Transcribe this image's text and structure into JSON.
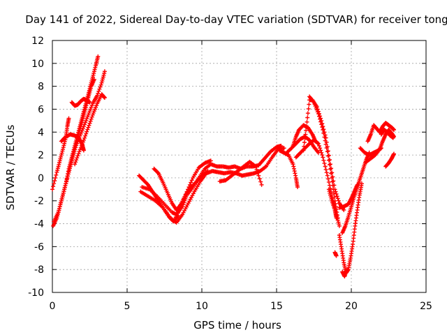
{
  "chart_data": {
    "type": "scatter",
    "title": "Day 141 of 2022, Sidereal Day-to-day VTEC variation (SDTVAR) for receiver tong",
    "xlabel": "GPS time / hours",
    "ylabel": "SDTVAR / TECUs",
    "xlim": [
      0,
      25
    ],
    "ylim": [
      -10,
      12
    ],
    "x_ticks": [
      0,
      5,
      10,
      15,
      20,
      25
    ],
    "y_ticks": [
      -10,
      -8,
      -6,
      -4,
      -2,
      0,
      2,
      4,
      6,
      8,
      10,
      12
    ],
    "grid": true,
    "legend": "none",
    "marker": "plus",
    "series": [
      {
        "color": "#ff0000",
        "tracks": [
          [
            [
              0.0,
              -1.0
            ],
            [
              0.3,
              0.5
            ],
            [
              0.5,
              1.5
            ],
            [
              0.7,
              2.5
            ],
            [
              0.9,
              3.5
            ],
            [
              1.0,
              4.5
            ],
            [
              1.1,
              5.2
            ]
          ],
          [
            [
              0.05,
              -4.2
            ],
            [
              0.3,
              -3.5
            ],
            [
              0.5,
              -2.5
            ],
            [
              0.7,
              -1.5
            ],
            [
              0.9,
              -0.5
            ],
            [
              1.1,
              0.8
            ],
            [
              1.3,
              1.8
            ],
            [
              1.5,
              2.8
            ],
            [
              1.7,
              3.8
            ],
            [
              1.9,
              4.8
            ],
            [
              2.1,
              5.8
            ],
            [
              2.3,
              6.8
            ],
            [
              2.5,
              7.8
            ],
            [
              2.7,
              8.8
            ],
            [
              2.9,
              9.8
            ],
            [
              3.05,
              10.6
            ]
          ],
          [
            [
              0.1,
              -3.8
            ],
            [
              0.4,
              -3.0
            ],
            [
              0.6,
              -2.0
            ],
            [
              0.8,
              -1.0
            ],
            [
              1.0,
              0.0
            ],
            [
              1.2,
              1.0
            ],
            [
              1.4,
              2.0
            ],
            [
              1.6,
              3.0
            ],
            [
              1.8,
              4.0
            ],
            [
              2.0,
              5.0
            ],
            [
              2.2,
              6.0
            ],
            [
              2.4,
              7.0
            ],
            [
              2.6,
              8.0
            ],
            [
              2.8,
              8.6
            ]
          ],
          [
            [
              0.6,
              3.2
            ],
            [
              0.9,
              3.6
            ],
            [
              1.2,
              3.8
            ],
            [
              1.5,
              3.7
            ],
            [
              1.8,
              3.4
            ],
            [
              2.0,
              2.9
            ],
            [
              2.1,
              2.4
            ]
          ],
          [
            [
              1.3,
              1.5
            ],
            [
              1.5,
              2.5
            ],
            [
              1.8,
              3.5
            ],
            [
              2.1,
              4.5
            ],
            [
              2.4,
              5.5
            ],
            [
              2.7,
              6.5
            ],
            [
              3.0,
              7.2
            ],
            [
              3.3,
              8.3
            ],
            [
              3.5,
              9.3
            ]
          ],
          [
            [
              1.5,
              1.2
            ],
            [
              1.8,
              2.3
            ],
            [
              2.1,
              3.3
            ],
            [
              2.4,
              4.4
            ],
            [
              2.7,
              5.5
            ],
            [
              3.0,
              6.5
            ],
            [
              3.3,
              7.3
            ],
            [
              3.5,
              7.0
            ]
          ],
          [
            [
              1.3,
              6.6
            ],
            [
              1.5,
              6.3
            ],
            [
              1.7,
              6.4
            ],
            [
              1.9,
              6.7
            ],
            [
              2.1,
              6.9
            ],
            [
              2.3,
              6.8
            ],
            [
              2.5,
              6.6
            ]
          ],
          [
            [
              5.9,
              -1.2
            ],
            [
              6.4,
              -1.6
            ],
            [
              6.9,
              -2.0
            ],
            [
              7.4,
              -2.6
            ],
            [
              7.9,
              -3.5
            ],
            [
              8.3,
              -3.9
            ],
            [
              8.7,
              -3.2
            ],
            [
              9.1,
              -2.2
            ],
            [
              9.5,
              -1.2
            ],
            [
              9.9,
              -0.3
            ],
            [
              10.3,
              0.4
            ],
            [
              10.7,
              0.6
            ],
            [
              11.1,
              0.5
            ],
            [
              11.5,
              0.4
            ],
            [
              11.9,
              0.5
            ],
            [
              12.3,
              0.4
            ],
            [
              12.7,
              0.2
            ],
            [
              13.1,
              0.3
            ],
            [
              13.5,
              0.4
            ],
            [
              13.9,
              0.6
            ],
            [
              14.3,
              1.0
            ],
            [
              14.7,
              1.8
            ],
            [
              15.1,
              2.5
            ],
            [
              15.5,
              2.6
            ]
          ],
          [
            [
              6.0,
              -0.8
            ],
            [
              6.5,
              -1.0
            ],
            [
              7.0,
              -1.6
            ],
            [
              7.5,
              -2.3
            ],
            [
              8.0,
              -3.0
            ],
            [
              8.3,
              -3.2
            ],
            [
              8.7,
              -2.5
            ],
            [
              9.0,
              -1.5
            ],
            [
              9.4,
              -0.8
            ],
            [
              9.8,
              0.0
            ],
            [
              10.2,
              0.8
            ],
            [
              10.6,
              1.2
            ],
            [
              11.0,
              1.0
            ],
            [
              11.4,
              1.0
            ],
            [
              11.8,
              0.9
            ],
            [
              12.2,
              1.0
            ],
            [
              12.6,
              0.8
            ],
            [
              13.0,
              1.0
            ],
            [
              13.4,
              1.0
            ],
            [
              13.8,
              1.1
            ],
            [
              14.2,
              1.7
            ],
            [
              14.6,
              2.3
            ],
            [
              15.0,
              2.7
            ],
            [
              15.3,
              2.8
            ]
          ],
          [
            [
              6.8,
              0.8
            ],
            [
              7.1,
              0.4
            ],
            [
              7.4,
              -0.4
            ],
            [
              7.7,
              -1.3
            ],
            [
              8.0,
              -2.2
            ],
            [
              8.3,
              -2.8
            ],
            [
              8.6,
              -2.3
            ],
            [
              8.9,
              -1.5
            ],
            [
              9.2,
              -0.9
            ],
            [
              9.6,
              -0.4
            ],
            [
              10.0,
              0.2
            ],
            [
              10.4,
              0.6
            ]
          ],
          [
            [
              5.8,
              0.2
            ],
            [
              6.1,
              -0.2
            ],
            [
              6.4,
              -0.6
            ],
            [
              6.7,
              -1.2
            ],
            [
              7.0,
              -1.8
            ],
            [
              7.4,
              -2.6
            ],
            [
              7.8,
              -3.4
            ],
            [
              8.1,
              -3.8
            ],
            [
              8.4,
              -3.3
            ]
          ],
          [
            [
              8.2,
              -3.6
            ],
            [
              8.6,
              -2.5
            ],
            [
              9.0,
              -1.2
            ],
            [
              9.4,
              0.0
            ],
            [
              9.8,
              0.9
            ],
            [
              10.2,
              1.3
            ],
            [
              10.6,
              1.5
            ]
          ],
          [
            [
              11.2,
              -0.3
            ],
            [
              11.6,
              -0.2
            ],
            [
              12.0,
              0.2
            ],
            [
              12.4,
              0.6
            ],
            [
              12.8,
              1.0
            ],
            [
              13.2,
              1.4
            ],
            [
              13.6,
              1.0
            ],
            [
              14.0,
              -0.6
            ]
          ],
          [
            [
              15.2,
              2.4
            ],
            [
              15.5,
              2.2
            ],
            [
              15.8,
              2.0
            ],
            [
              16.1,
              1.2
            ],
            [
              16.3,
              0.0
            ],
            [
              16.4,
              -0.8
            ]
          ],
          [
            [
              15.6,
              2.1
            ],
            [
              16.0,
              2.6
            ],
            [
              16.3,
              3.0
            ],
            [
              16.6,
              3.4
            ],
            [
              16.9,
              3.6
            ],
            [
              17.2,
              3.3
            ],
            [
              17.5,
              2.7
            ],
            [
              17.8,
              2.2
            ]
          ],
          [
            [
              16.3,
              1.8
            ],
            [
              16.6,
              2.2
            ],
            [
              16.9,
              2.6
            ],
            [
              17.2,
              3.0
            ],
            [
              17.5,
              3.3
            ],
            [
              17.8,
              3.0
            ],
            [
              18.1,
              1.8
            ],
            [
              18.4,
              0.2
            ],
            [
              18.7,
              -1.5
            ],
            [
              19.0,
              -3.2
            ],
            [
              19.2,
              -4.2
            ]
          ],
          [
            [
              16.1,
              2.8
            ],
            [
              16.3,
              3.6
            ],
            [
              16.5,
              4.2
            ],
            [
              16.8,
              4.6
            ],
            [
              17.1,
              4.4
            ],
            [
              17.4,
              3.8
            ],
            [
              17.6,
              3.2
            ]
          ],
          [
            [
              16.8,
              2.4
            ],
            [
              17.0,
              4.5
            ],
            [
              17.2,
              6.8
            ],
            [
              17.4,
              6.8
            ],
            [
              17.7,
              6.2
            ],
            [
              18.0,
              5.0
            ],
            [
              18.3,
              3.5
            ],
            [
              18.6,
              1.2
            ],
            [
              18.9,
              -1.0
            ],
            [
              19.2,
              -2.2
            ],
            [
              19.5,
              -2.8
            ]
          ],
          [
            [
              17.2,
              7.1
            ],
            [
              17.5,
              6.6
            ],
            [
              17.8,
              5.6
            ],
            [
              18.1,
              4.2
            ],
            [
              18.4,
              2.3
            ],
            [
              18.7,
              0.0
            ],
            [
              18.9,
              -2.0
            ],
            [
              19.1,
              -3.5
            ]
          ],
          [
            [
              18.5,
              -1.0
            ],
            [
              18.7,
              -2.0
            ],
            [
              18.9,
              -2.8
            ],
            [
              19.0,
              -3.5
            ]
          ],
          [
            [
              18.9,
              -6.5
            ],
            [
              19.0,
              -6.8
            ]
          ],
          [
            [
              19.2,
              -5.0
            ],
            [
              19.35,
              -6.2
            ],
            [
              19.5,
              -7.4
            ],
            [
              19.65,
              -8.3
            ],
            [
              19.8,
              -8.0
            ],
            [
              19.95,
              -7.0
            ],
            [
              20.1,
              -5.8
            ],
            [
              20.25,
              -4.2
            ],
            [
              20.4,
              -2.8
            ],
            [
              20.55,
              -1.5
            ],
            [
              20.7,
              -0.5
            ]
          ],
          [
            [
              19.4,
              -8.2
            ],
            [
              19.55,
              -8.6
            ],
            [
              19.7,
              -8.0
            ]
          ],
          [
            [
              19.2,
              -2.6
            ],
            [
              19.5,
              -2.5
            ],
            [
              19.8,
              -2.3
            ],
            [
              20.0,
              -1.8
            ],
            [
              20.2,
              -1.2
            ],
            [
              20.4,
              -0.6
            ]
          ],
          [
            [
              19.4,
              -4.8
            ],
            [
              19.6,
              -4.2
            ],
            [
              19.8,
              -3.4
            ],
            [
              20.0,
              -2.5
            ],
            [
              20.2,
              -1.6
            ],
            [
              20.4,
              -0.8
            ],
            [
              20.6,
              0.0
            ],
            [
              20.8,
              0.8
            ],
            [
              21.0,
              1.6
            ],
            [
              21.2,
              2.2
            ]
          ],
          [
            [
              20.6,
              2.6
            ],
            [
              20.9,
              2.2
            ],
            [
              21.2,
              2.0
            ],
            [
              21.5,
              2.2
            ],
            [
              21.8,
              2.4
            ],
            [
              22.0,
              2.6
            ]
          ],
          [
            [
              21.0,
              1.4
            ],
            [
              21.3,
              1.7
            ],
            [
              21.6,
              2.0
            ],
            [
              21.9,
              2.5
            ],
            [
              22.1,
              3.2
            ],
            [
              22.3,
              3.8
            ],
            [
              22.5,
              4.2
            ],
            [
              22.7,
              3.9
            ],
            [
              22.85,
              3.6
            ]
          ],
          [
            [
              21.1,
              3.2
            ],
            [
              21.3,
              3.8
            ],
            [
              21.5,
              4.6
            ],
            [
              21.7,
              4.3
            ],
            [
              21.9,
              4.0
            ],
            [
              22.1,
              4.5
            ],
            [
              22.3,
              4.8
            ],
            [
              22.5,
              4.6
            ],
            [
              22.7,
              4.4
            ],
            [
              22.85,
              4.2
            ]
          ],
          [
            [
              22.0,
              3.8
            ],
            [
              22.2,
              4.2
            ],
            [
              22.4,
              4.0
            ],
            [
              22.6,
              3.7
            ],
            [
              22.8,
              3.5
            ]
          ],
          [
            [
              22.3,
              1.0
            ],
            [
              22.5,
              1.3
            ],
            [
              22.7,
              1.7
            ],
            [
              22.85,
              2.1
            ]
          ]
        ]
      }
    ]
  }
}
